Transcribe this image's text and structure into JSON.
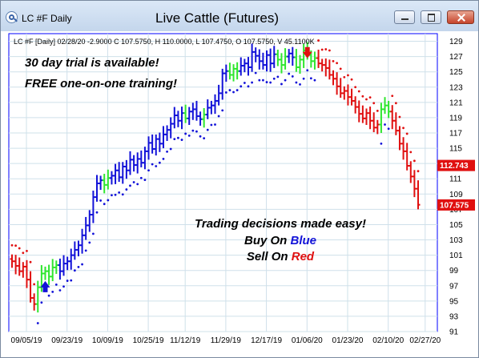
{
  "window": {
    "title": "LC #F Daily",
    "chart_title": "Live Cattle (Futures)"
  },
  "info_line": "LC #F [Daily] 02/28/20  -2.9000 C 107.5750, H 110.0000, L 107.4750, O 107.5750, V 45.1100K",
  "promo": {
    "line1": "30 day trial is available!",
    "line2": "FREE one-on-one training!",
    "line3": "Trading decisions made easy!",
    "buy_prefix": "Buy On ",
    "buy_word": "Blue",
    "sell_prefix": "Sell On ",
    "sell_word": "Red"
  },
  "colors": {
    "blue": "#1212d8",
    "green": "#2ee62e",
    "red": "#e01010",
    "grid": "#cfe0ea",
    "axis_bg": "#ffffff",
    "price_tag": "#e01010",
    "border": "#0000ff"
  },
  "chart_data": {
    "type": "ohlc",
    "ylim": [
      91,
      130
    ],
    "y_ticks": [
      "91",
      "93",
      "95",
      "97",
      "99",
      "101",
      "103",
      "105",
      "107",
      "109",
      "111",
      "113",
      "115",
      "117",
      "119",
      "121",
      "123",
      "125",
      "127",
      "129"
    ],
    "x_labels": [
      "09/05/19",
      "09/23/19",
      "10/09/19",
      "10/25/19",
      "11/12/19",
      "11/29/19",
      "12/17/19",
      "01/06/20",
      "01/23/20",
      "02/10/20",
      "02/27/20"
    ],
    "last_price": "107.575",
    "marker_price": "112.743",
    "last_value": 107.575,
    "marker_value": 112.743,
    "buy_arrow_value": 97.2,
    "sell_arrow_value": 127.2,
    "closes": [
      100.2,
      99.6,
      98.9,
      99.5,
      97.8,
      95.4,
      94.6,
      96.8,
      98.6,
      98.9,
      98.2,
      99.4,
      99.7,
      98.9,
      99.9,
      100.2,
      101.0,
      101.7,
      102.3,
      103.6,
      104.9,
      106.3,
      108.6,
      110.4,
      110.8,
      110.2,
      111.1,
      111.4,
      112.1,
      111.2,
      112.6,
      112.1,
      113.5,
      112.8,
      113.6,
      113.1,
      114.6,
      115.7,
      114.9,
      116.2,
      115.6,
      116.8,
      117.4,
      118.2,
      119.3,
      118.6,
      119.6,
      118.9,
      119.8,
      120.1,
      119.2,
      118.8,
      119.4,
      120.3,
      120.6,
      121.2,
      122.2,
      124.8,
      125.1,
      124.6,
      125.4,
      125.1,
      125.8,
      126.1,
      125.6,
      127.6,
      127.1,
      126.4,
      125.9,
      127.2,
      126.1,
      127.3,
      126.6,
      125.9,
      127.0,
      127.4,
      126.9,
      125.6,
      126.6,
      127.8,
      127.2,
      126.4,
      126.8,
      126.1,
      125.9,
      125.5,
      124.6,
      124.1,
      123.1,
      122.2,
      122.5,
      121.7,
      121.2,
      120.4,
      119.5,
      118.9,
      119.6,
      118.6,
      117.7,
      118.1,
      120.1,
      120.6,
      119.8,
      118.6,
      117.3,
      115.6,
      114.6,
      112.7,
      111.3,
      109.7,
      107.6
    ],
    "signals": [
      "R",
      "R",
      "R",
      "R",
      "R",
      "R",
      "R",
      "G",
      "G",
      "G",
      "G",
      "G",
      "G",
      "B",
      "B",
      "B",
      "B",
      "B",
      "B",
      "B",
      "B",
      "B",
      "B",
      "B",
      "B",
      "G",
      "G",
      "B",
      "B",
      "B",
      "B",
      "B",
      "B",
      "B",
      "B",
      "B",
      "B",
      "B",
      "B",
      "B",
      "B",
      "B",
      "B",
      "B",
      "B",
      "B",
      "B",
      "G",
      "B",
      "B",
      "B",
      "B",
      "G",
      "B",
      "B",
      "B",
      "B",
      "B",
      "B",
      "G",
      "G",
      "G",
      "B",
      "B",
      "B",
      "B",
      "B",
      "B",
      "B",
      "B",
      "B",
      "B",
      "G",
      "G",
      "G",
      "B",
      "B",
      "G",
      "G",
      "G",
      "G",
      "G",
      "G",
      "R",
      "R",
      "R",
      "R",
      "R",
      "R",
      "R",
      "R",
      "R",
      "R",
      "R",
      "R",
      "R",
      "R",
      "R",
      "R",
      "R",
      "G",
      "G",
      "G",
      "R",
      "R",
      "R",
      "R",
      "R",
      "R",
      "R",
      "R"
    ]
  }
}
